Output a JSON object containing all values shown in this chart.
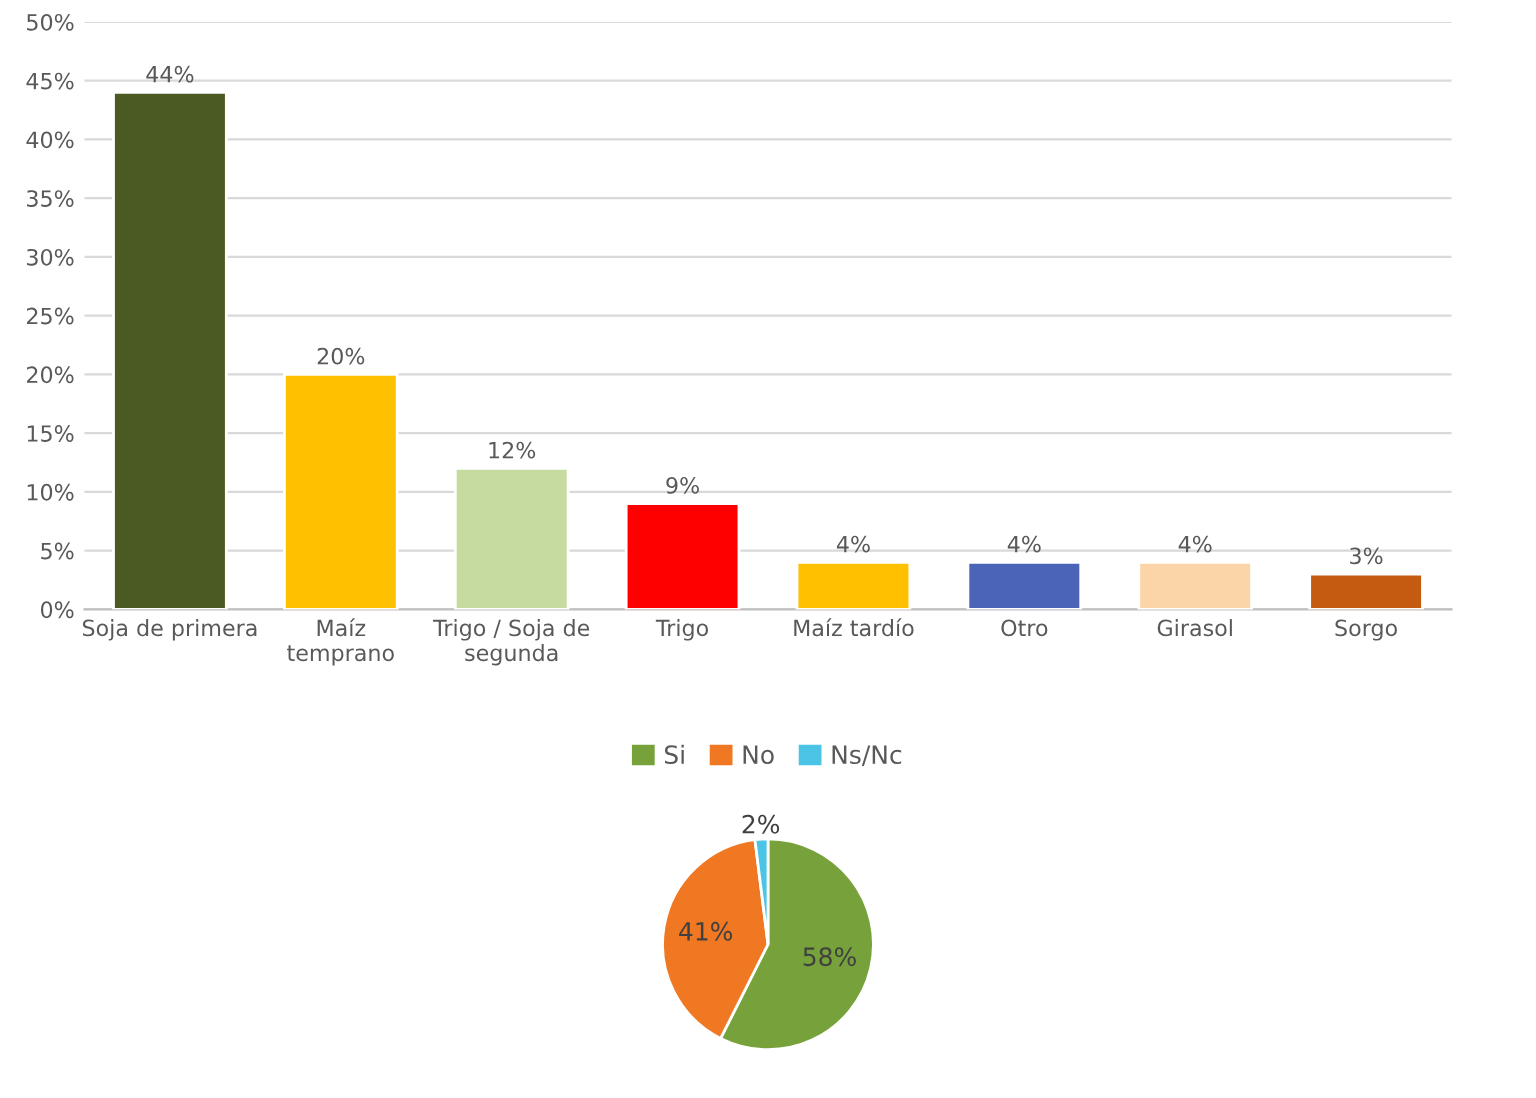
{
  "chart_data": [
    {
      "type": "bar",
      "categories": [
        "Soja de primera",
        "Maíz\ntemprano",
        "Trigo / Soja de\nsegunda",
        "Trigo",
        "Maíz tardío",
        "Otro",
        "Girasol",
        "Sorgo"
      ],
      "values": [
        44,
        20,
        12,
        9,
        4,
        4,
        4,
        3
      ],
      "colors": [
        "#4b5a23",
        "#ffc000",
        "#c5dba0",
        "#ff0000",
        "#ffc000",
        "#4c64b8",
        "#fbd5a8",
        "#c55a11"
      ],
      "ylim": [
        0,
        50
      ],
      "yticks": [
        {
          "value": 0,
          "label": "0%"
        },
        {
          "value": 5,
          "label": "5%"
        },
        {
          "value": 10,
          "label": "10%"
        },
        {
          "value": 15,
          "label": "15%"
        },
        {
          "value": 20,
          "label": "20%"
        },
        {
          "value": 25,
          "label": "25%"
        },
        {
          "value": 30,
          "label": "30%"
        },
        {
          "value": 35,
          "label": "35%"
        },
        {
          "value": 40,
          "label": "40%"
        },
        {
          "value": 45,
          "label": "45%"
        },
        {
          "value": 50,
          "label": "50%"
        }
      ],
      "value_labels": [
        "44%",
        "20%",
        "12%",
        "9%",
        "4%",
        "4%",
        "4%",
        "3%"
      ],
      "grid": "y"
    },
    {
      "type": "pie",
      "categories": [
        "Si",
        "No",
        "Ns/Nc"
      ],
      "values": [
        58,
        41,
        2
      ],
      "colors": [
        "#77a23b",
        "#f07823",
        "#4bc4e6"
      ],
      "value_labels": [
        "58%",
        "41%",
        "2%"
      ],
      "legend": "top"
    }
  ]
}
